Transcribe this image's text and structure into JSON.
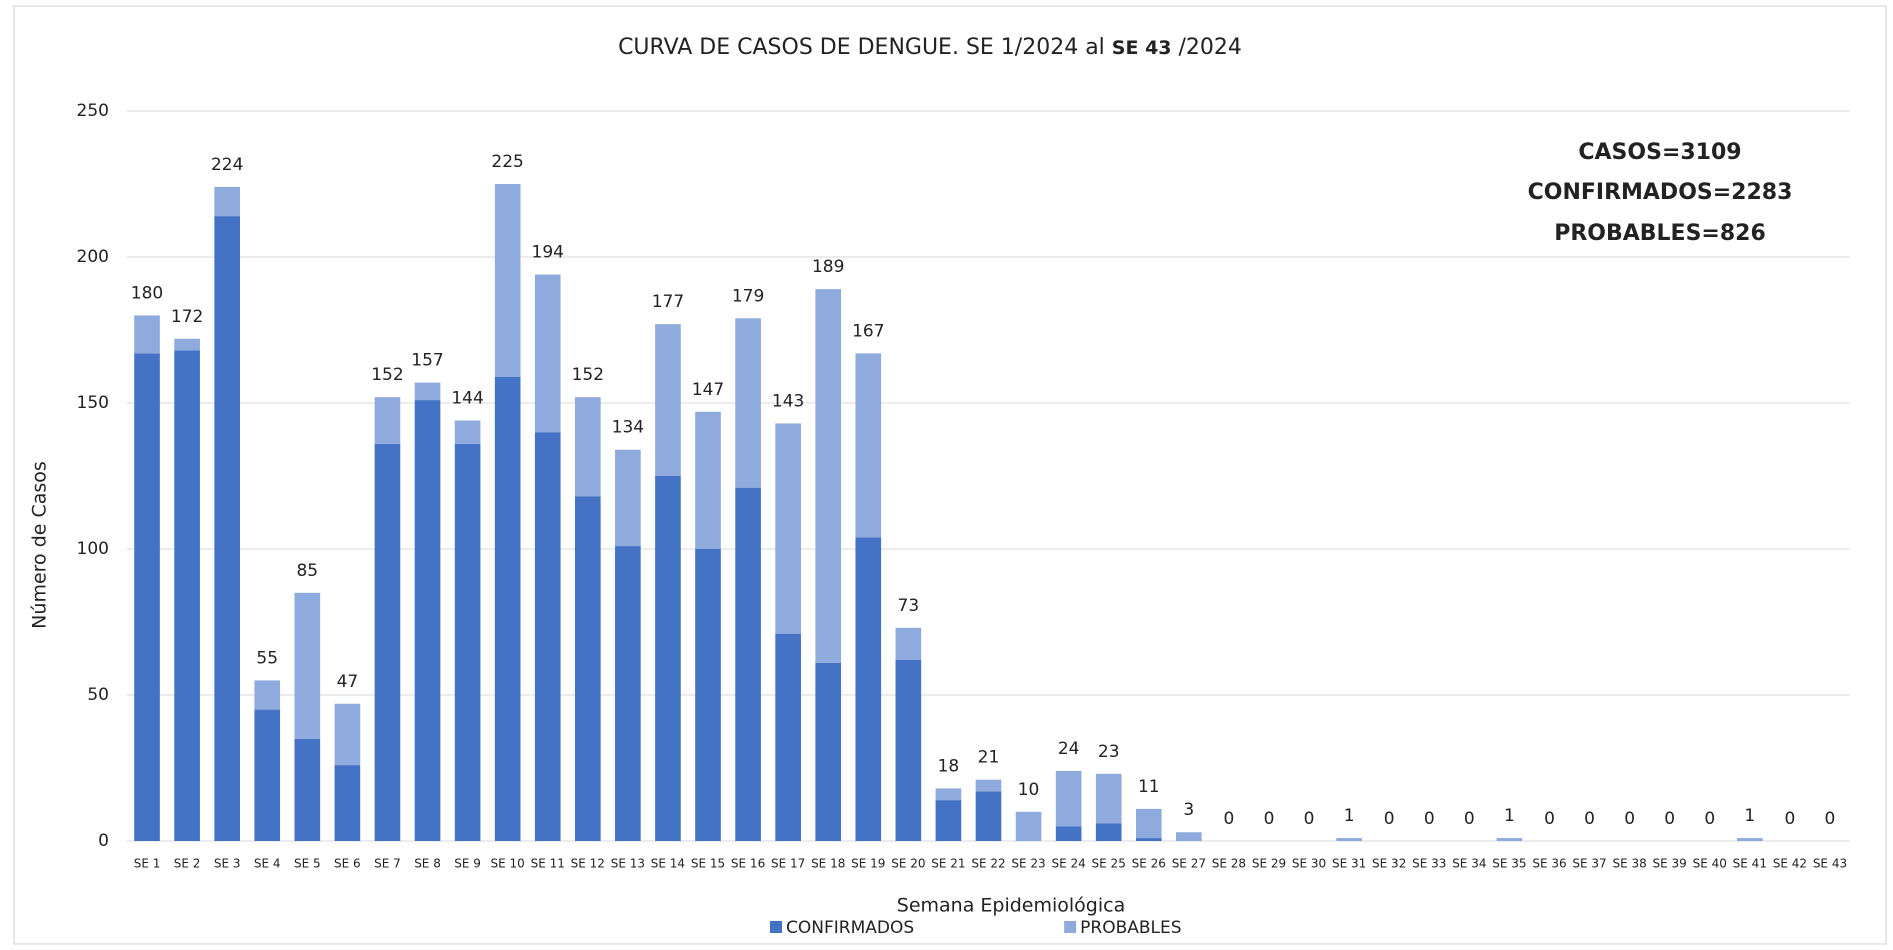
{
  "chart_data": {
    "type": "stacked-bar",
    "title": [
      "CURVA DE CASOS DE DENGUE. SE 1/2024 al",
      "SE 43",
      "/2024"
    ],
    "x_label": "Semana Epidemiológica",
    "y_label": "Número de Casos",
    "annotations": [
      "CASOS=3109",
      "CONFIRMADOS=2283",
      "PROBABLES=826"
    ],
    "categories": [
      "SE 1",
      "SE 2",
      "SE 3",
      "SE 4",
      "SE 5",
      "SE 6",
      "SE 7",
      "SE 8",
      "SE 9",
      "SE 10",
      "SE 11",
      "SE 12",
      "SE 13",
      "SE 14",
      "SE 15",
      "SE 16",
      "SE 17",
      "SE 18",
      "SE 19",
      "SE 20",
      "SE 21",
      "SE 22",
      "SE 23",
      "SE 24",
      "SE 25",
      "SE 26",
      "SE 27",
      "SE 28",
      "SE 29",
      "SE 30",
      "SE 31",
      "SE 32",
      "SE 33",
      "SE 34",
      "SE 35",
      "SE 36",
      "SE 37",
      "SE 38",
      "SE 39",
      "SE 40",
      "SE 41",
      "SE 42",
      "SE 43"
    ],
    "series": [
      {
        "name": "CONFIRMADOS",
        "color": "#4472c4",
        "values": [
          167,
          168,
          214,
          45,
          35,
          26,
          136,
          151,
          136,
          159,
          140,
          118,
          101,
          125,
          100,
          121,
          71,
          61,
          104,
          62,
          14,
          17,
          0,
          5,
          6,
          1,
          0,
          0,
          0,
          0,
          0,
          0,
          0,
          0,
          0,
          0,
          0,
          0,
          0,
          0,
          0,
          0,
          0
        ]
      },
      {
        "name": "PROBABLES",
        "color": "#8faadc",
        "values": [
          13,
          4,
          10,
          10,
          50,
          21,
          16,
          6,
          8,
          66,
          54,
          34,
          33,
          52,
          47,
          58,
          72,
          128,
          63,
          11,
          4,
          4,
          10,
          19,
          17,
          10,
          3,
          0,
          0,
          0,
          1,
          0,
          0,
          0,
          1,
          0,
          0,
          0,
          0,
          0,
          1,
          0,
          0
        ]
      }
    ],
    "totals": [
      180,
      172,
      224,
      55,
      85,
      47,
      152,
      157,
      144,
      225,
      194,
      152,
      134,
      177,
      147,
      179,
      143,
      189,
      167,
      73,
      18,
      21,
      10,
      24,
      23,
      11,
      3,
      0,
      0,
      0,
      1,
      0,
      0,
      0,
      1,
      0,
      0,
      0,
      0,
      0,
      1,
      0,
      0
    ],
    "ylim": [
      0,
      250
    ],
    "yticks": [
      0,
      50,
      100,
      150,
      200,
      250
    ],
    "grid": true
  }
}
